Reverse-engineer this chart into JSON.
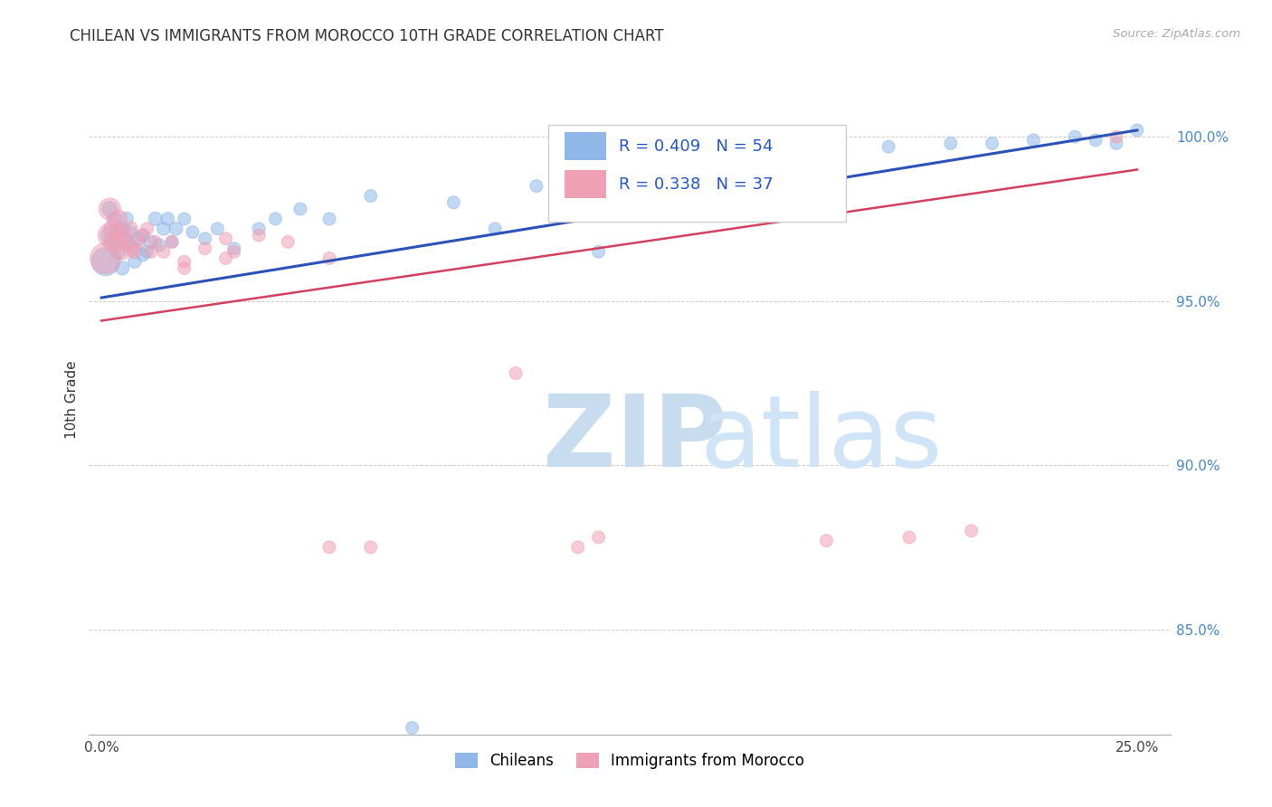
{
  "title": "CHILEAN VS IMMIGRANTS FROM MOROCCO 10TH GRADE CORRELATION CHART",
  "source": "Source: ZipAtlas.com",
  "ylabel": "10th Grade",
  "xlim": [
    -0.003,
    0.258
  ],
  "ylim": [
    0.818,
    1.022
  ],
  "xtick_positions": [
    0.0,
    0.05,
    0.1,
    0.15,
    0.2,
    0.25
  ],
  "xtick_labels": [
    "0.0%",
    "",
    "",
    "",
    "",
    "25.0%"
  ],
  "ytick_positions": [
    0.85,
    0.9,
    0.95,
    1.0
  ],
  "ytick_labels": [
    "85.0%",
    "90.0%",
    "95.0%",
    "100.0%"
  ],
  "legend_labels": [
    "Chileans",
    "Immigrants from Morocco"
  ],
  "R_blue": 0.409,
  "N_blue": 54,
  "R_pink": 0.338,
  "N_pink": 37,
  "blue_color": "#8fb8e8",
  "pink_color": "#f0a0b5",
  "trend_blue": "#2a52b8",
  "trend_pink": "#d44060",
  "watermark_zip_color": "#c8dcf0",
  "watermark_atlas_color": "#d0e4f8",
  "chileans_x": [
    0.001,
    0.002,
    0.002,
    0.003,
    0.003,
    0.004,
    0.004,
    0.005,
    0.005,
    0.006,
    0.006,
    0.007,
    0.007,
    0.008,
    0.008,
    0.009,
    0.01,
    0.01,
    0.011,
    0.012,
    0.013,
    0.014,
    0.015,
    0.016,
    0.017,
    0.018,
    0.02,
    0.022,
    0.025,
    0.028,
    0.032,
    0.038,
    0.042,
    0.048,
    0.055,
    0.065,
    0.075,
    0.085,
    0.095,
    0.105,
    0.115,
    0.13,
    0.145,
    0.16,
    0.175,
    0.19,
    0.205,
    0.215,
    0.225,
    0.235,
    0.12,
    0.24,
    0.245,
    0.25
  ],
  "chileans_y": [
    0.962,
    0.97,
    0.978,
    0.968,
    0.975,
    0.971,
    0.965,
    0.972,
    0.96,
    0.968,
    0.975,
    0.967,
    0.971,
    0.962,
    0.966,
    0.969,
    0.964,
    0.97,
    0.965,
    0.968,
    0.975,
    0.967,
    0.972,
    0.975,
    0.968,
    0.972,
    0.975,
    0.971,
    0.969,
    0.972,
    0.966,
    0.972,
    0.975,
    0.978,
    0.975,
    0.982,
    0.82,
    0.98,
    0.972,
    0.985,
    0.98,
    0.99,
    0.988,
    0.992,
    0.995,
    0.997,
    0.998,
    0.998,
    0.999,
    1.0,
    0.965,
    0.999,
    0.998,
    1.002
  ],
  "chileans_sizes": [
    500,
    200,
    150,
    180,
    120,
    160,
    140,
    130,
    120,
    140,
    120,
    110,
    100,
    110,
    100,
    110,
    100,
    110,
    100,
    110,
    120,
    100,
    110,
    110,
    100,
    110,
    100,
    100,
    100,
    100,
    100,
    100,
    100,
    100,
    100,
    100,
    100,
    100,
    100,
    100,
    100,
    100,
    100,
    100,
    100,
    100,
    100,
    100,
    100,
    100,
    100,
    100,
    100,
    100
  ],
  "morocco_x": [
    0.001,
    0.002,
    0.002,
    0.003,
    0.003,
    0.004,
    0.005,
    0.005,
    0.006,
    0.007,
    0.007,
    0.008,
    0.009,
    0.01,
    0.011,
    0.012,
    0.013,
    0.015,
    0.017,
    0.02,
    0.025,
    0.03,
    0.038,
    0.045,
    0.03,
    0.02,
    0.032,
    0.055,
    0.065,
    0.12,
    0.055,
    0.1,
    0.115,
    0.175,
    0.195,
    0.21,
    0.245
  ],
  "morocco_y": [
    0.963,
    0.97,
    0.978,
    0.968,
    0.972,
    0.975,
    0.97,
    0.965,
    0.968,
    0.966,
    0.972,
    0.965,
    0.968,
    0.97,
    0.972,
    0.965,
    0.968,
    0.965,
    0.968,
    0.962,
    0.966,
    0.969,
    0.97,
    0.968,
    0.963,
    0.96,
    0.965,
    0.875,
    0.875,
    0.878,
    0.963,
    0.928,
    0.875,
    0.877,
    0.878,
    0.88,
    1.0
  ],
  "morocco_sizes": [
    600,
    350,
    300,
    280,
    250,
    200,
    180,
    160,
    150,
    140,
    130,
    120,
    110,
    100,
    100,
    100,
    100,
    100,
    100,
    100,
    100,
    100,
    100,
    100,
    100,
    100,
    100,
    100,
    100,
    100,
    100,
    100,
    100,
    100,
    100,
    100,
    100
  ]
}
